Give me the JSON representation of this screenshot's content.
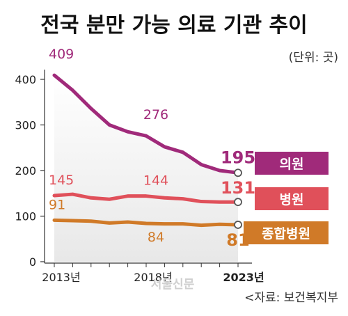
{
  "title": "전국 분만 가능 의료 기관 추이",
  "unit": "(단위: 곳)",
  "source": "<자료: 보건복지부",
  "watermark": "서울신문",
  "chart_data": {
    "type": "line",
    "x": [
      2013,
      2014,
      2015,
      2016,
      2017,
      2018,
      2019,
      2020,
      2021,
      2022,
      2023
    ],
    "x_tick_labels": [
      {
        "x": 2013,
        "label": "2013년"
      },
      {
        "x": 2018,
        "label": "2018년"
      },
      {
        "x": 2023,
        "label": "2023년"
      }
    ],
    "ylim": [
      0,
      420
    ],
    "y_ticks": [
      0,
      100,
      200,
      300,
      400
    ],
    "grid": false,
    "legend_position": "right",
    "series": [
      {
        "name": "의원",
        "color": "#a02a7a",
        "values": [
          409,
          376,
          336,
          300,
          285,
          276,
          252,
          240,
          213,
          200,
          195
        ],
        "start_label": "409",
        "mid_label": "276",
        "end_label": "195"
      },
      {
        "name": "병원",
        "color": "#e0505a",
        "values": [
          145,
          148,
          140,
          137,
          144,
          144,
          140,
          138,
          132,
          131,
          131
        ],
        "start_label": "145",
        "mid_label": "144",
        "end_label": "131"
      },
      {
        "name": "종합병원",
        "color": "#d07a28",
        "values": [
          91,
          90,
          89,
          85,
          87,
          84,
          83,
          83,
          80,
          82,
          81
        ],
        "start_label": "91",
        "mid_label": "84",
        "end_label": "81"
      }
    ]
  }
}
